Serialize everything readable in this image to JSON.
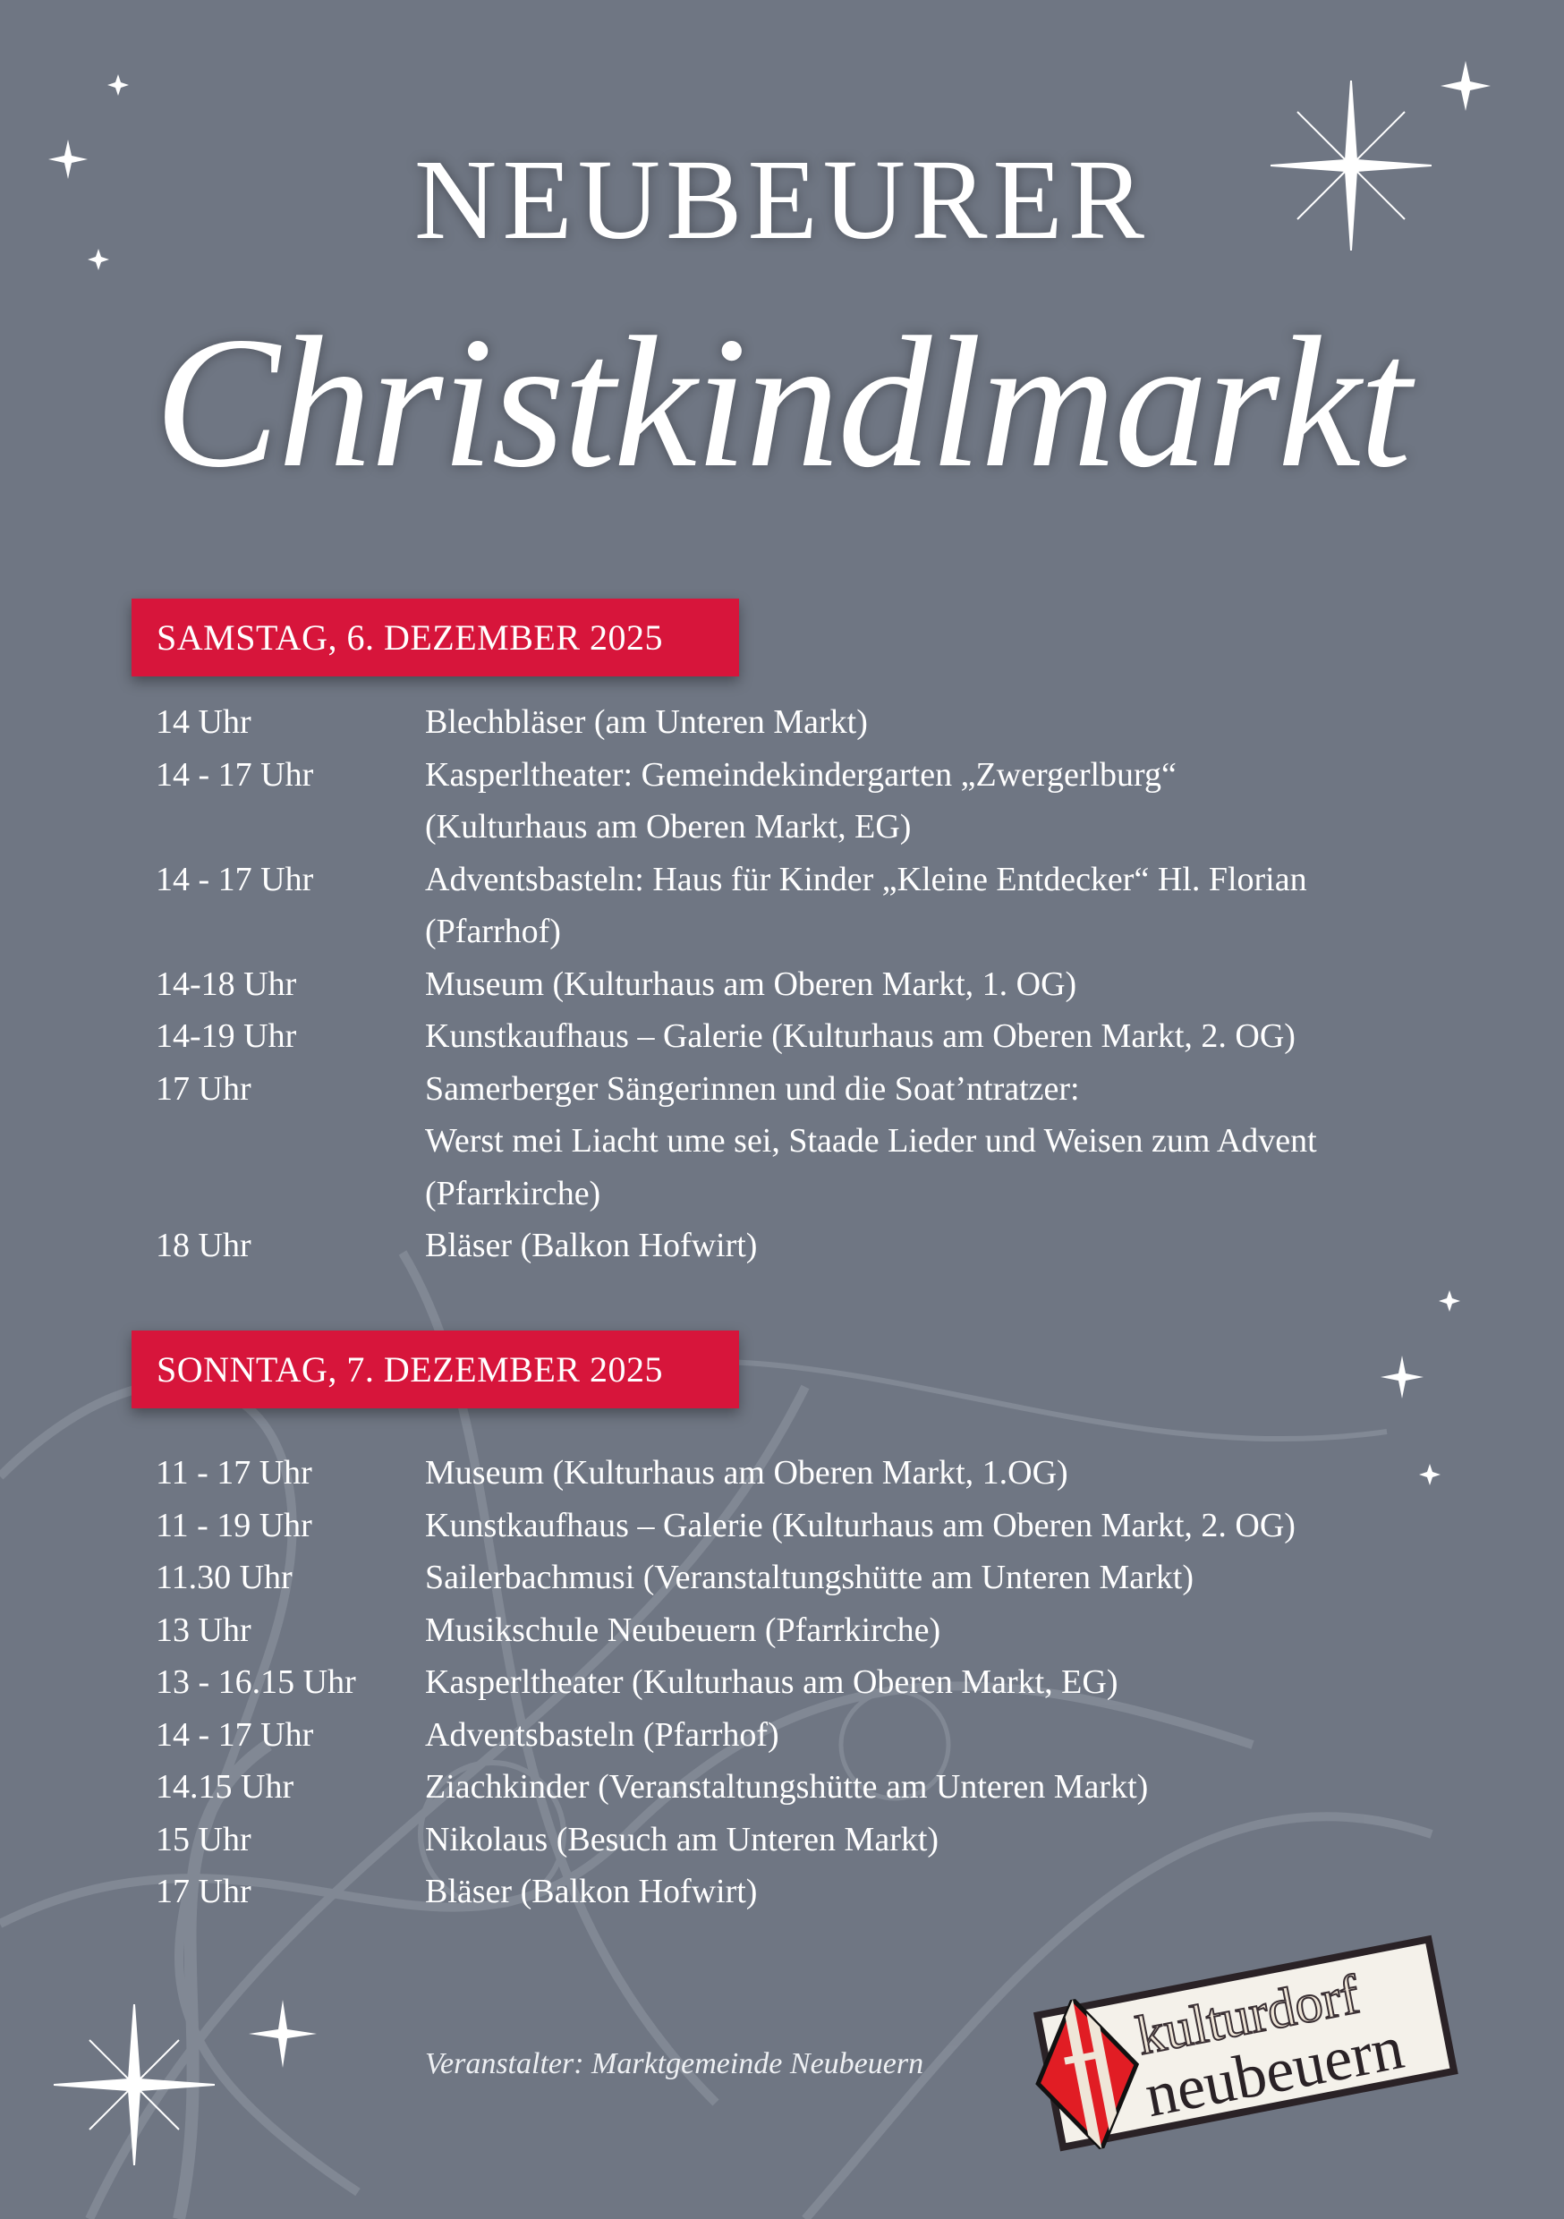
{
  "header": {
    "title": "NEUBEURER",
    "subtitle": "Christkindlmarkt"
  },
  "colors": {
    "background": "#6f7683",
    "accent_red": "#d7153b",
    "text": "#ffffff"
  },
  "days": [
    {
      "label": "SAMSTAG, 6. DEZEMBER 2025",
      "events": [
        {
          "time": "14 Uhr",
          "lines": [
            "Blechbläser (am Unteren Markt)"
          ]
        },
        {
          "time": "14 - 17 Uhr",
          "lines": [
            "Kasperltheater: Gemeindekindergarten „Zwergerlburg“",
            "(Kulturhaus am Oberen Markt, EG)"
          ]
        },
        {
          "time": "14 - 17 Uhr",
          "lines": [
            "Adventsbasteln: Haus für Kinder „Kleine Entdecker“ Hl. Florian",
            "(Pfarrhof)"
          ]
        },
        {
          "time": "14-18 Uhr",
          "lines": [
            "Museum (Kulturhaus am Oberen Markt, 1. OG)"
          ]
        },
        {
          "time": "14-19 Uhr",
          "lines": [
            "Kunstkaufhaus – Galerie (Kulturhaus am Oberen Markt, 2. OG)"
          ]
        },
        {
          "time": "17 Uhr",
          "lines": [
            "Samerberger Sängerinnen und die Soat’ntratzer:",
            "Werst mei Liacht ume sei, Staade Lieder und Weisen zum Advent",
            "(Pfarrkirche)"
          ]
        },
        {
          "time": "18 Uhr",
          "lines": [
            "Bläser (Balkon Hofwirt)"
          ]
        }
      ]
    },
    {
      "label": "SONNTAG, 7. DEZEMBER 2025",
      "events": [
        {
          "time": "11 - 17 Uhr",
          "lines": [
            "Museum (Kulturhaus am Oberen Markt, 1.OG)"
          ]
        },
        {
          "time": "11 - 19 Uhr",
          "lines": [
            "Kunstkaufhaus – Galerie (Kulturhaus am Oberen Markt, 2. OG)"
          ]
        },
        {
          "time": "11.30 Uhr",
          "lines": [
            "Sailerbachmusi (Veranstaltungshütte am Unteren Markt)"
          ]
        },
        {
          "time": "13 Uhr",
          "lines": [
            "Musikschule Neubeuern (Pfarrkirche)"
          ]
        },
        {
          "time": "13 - 16.15 Uhr",
          "lines": [
            "Kasperltheater (Kulturhaus am Oberen Markt, EG)"
          ]
        },
        {
          "time": "14 - 17 Uhr",
          "lines": [
            "Adventsbasteln (Pfarrhof)"
          ]
        },
        {
          "time": "14.15 Uhr",
          "lines": [
            "Ziachkinder (Veranstaltungshütte am Unteren Markt)"
          ]
        },
        {
          "time": "15 Uhr",
          "lines": [
            "Nikolaus (Besuch am Unteren Markt)"
          ]
        },
        {
          "time": "17 Uhr",
          "lines": [
            "Bläser (Balkon Hofwirt)"
          ]
        }
      ]
    }
  ],
  "footer": {
    "organizer": "Veranstalter: Marktgemeinde Neubeuern"
  },
  "logo": {
    "line1": "kulturdorf",
    "line2": "neubeuern"
  }
}
